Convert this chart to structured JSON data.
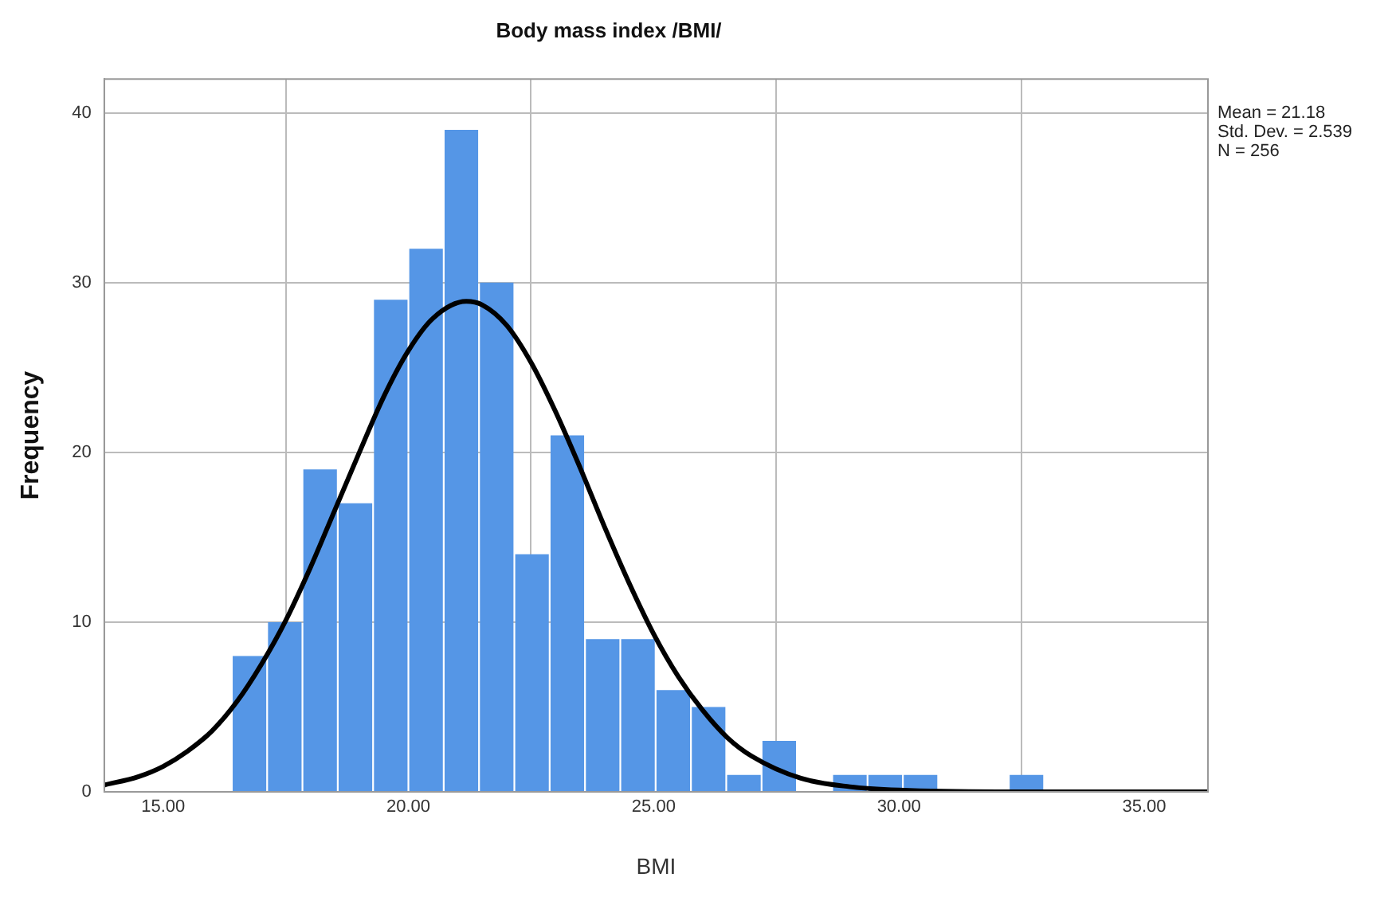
{
  "chart_data": {
    "type": "histogram",
    "title": "Body mass index /BMI/",
    "xlabel": "BMI",
    "ylabel": "Frequency",
    "bins": [
      16.4,
      17.12,
      17.84,
      18.56,
      19.28,
      20.0,
      20.72,
      21.44,
      22.16,
      22.88,
      23.6,
      24.32,
      25.04,
      25.76,
      26.48,
      27.2,
      27.92,
      28.64,
      29.36,
      30.08,
      30.8,
      31.52,
      32.24,
      32.96
    ],
    "values": [
      8,
      10,
      19,
      17,
      29,
      32,
      39,
      30,
      14,
      21,
      9,
      9,
      6,
      5,
      1,
      3,
      0,
      1,
      1,
      1,
      0,
      0,
      1
    ],
    "color": "#5596e6",
    "series": [
      {
        "type": "line",
        "color": "#000000",
        "x": [
          13.8,
          14.5,
          15,
          15.5,
          16,
          16.5,
          17,
          17.5,
          18,
          18.5,
          19,
          19.5,
          20,
          20.5,
          21.18,
          21.5,
          22,
          22.5,
          23,
          23.5,
          24,
          24.5,
          25,
          25.5,
          26,
          26.5,
          27,
          28,
          29,
          30,
          32,
          36.3
        ],
        "values": [
          0.4,
          0.9,
          1.5,
          2.4,
          3.6,
          5.3,
          7.5,
          10.1,
          13.2,
          16.6,
          20,
          23.3,
          26,
          27.9,
          28.9,
          28.7,
          27.5,
          25.3,
          22.4,
          19.1,
          15.6,
          12.3,
          9.3,
          6.8,
          4.8,
          3.2,
          2.1,
          0.8,
          0.3,
          0.1,
          0,
          0
        ]
      }
    ],
    "xlim": [
      13.8,
      36.3
    ],
    "xticks": [
      {
        "value": 15,
        "label": "15.00"
      },
      {
        "value": 20,
        "label": "20.00"
      },
      {
        "value": 25,
        "label": "25.00"
      },
      {
        "value": 30,
        "label": "30.00"
      },
      {
        "value": 35,
        "label": "35.00"
      }
    ],
    "ylim": [
      0,
      42
    ],
    "yticks": [
      0,
      10,
      20,
      30,
      40
    ],
    "grid": true,
    "legend": false,
    "annotations": [
      "Mean = 21.18",
      "Std. Dev. = 2.539",
      "N = 256"
    ]
  }
}
